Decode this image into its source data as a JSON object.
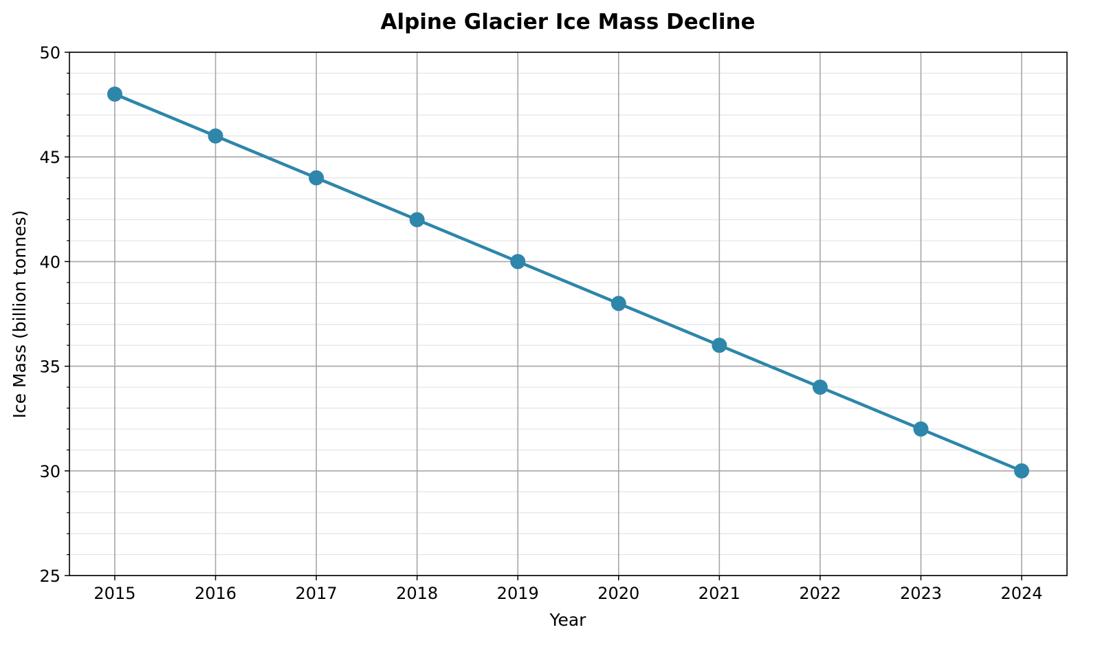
{
  "chart_data": {
    "type": "line",
    "title": "Alpine Glacier Ice Mass Decline",
    "xlabel": "Year",
    "ylabel": "Ice Mass (billion tonnes)",
    "x": [
      2015,
      2016,
      2017,
      2018,
      2019,
      2020,
      2021,
      2022,
      2023,
      2024
    ],
    "series": [
      {
        "values": [
          48,
          46,
          44,
          42,
          40,
          38,
          36,
          34,
          32,
          30
        ],
        "color": "#2e86ab",
        "marker": "circle"
      }
    ],
    "xticks": [
      "2015",
      "2016",
      "2017",
      "2018",
      "2019",
      "2020",
      "2021",
      "2022",
      "2023",
      "2024"
    ],
    "yticks": [
      "25",
      "30",
      "35",
      "40",
      "45",
      "50"
    ],
    "ylim": [
      25,
      50
    ],
    "xlim": [
      2014.55,
      2024.45
    ],
    "y_minor_step": 1,
    "grid": {
      "major": true,
      "minor_y": true
    },
    "legend": "none"
  }
}
